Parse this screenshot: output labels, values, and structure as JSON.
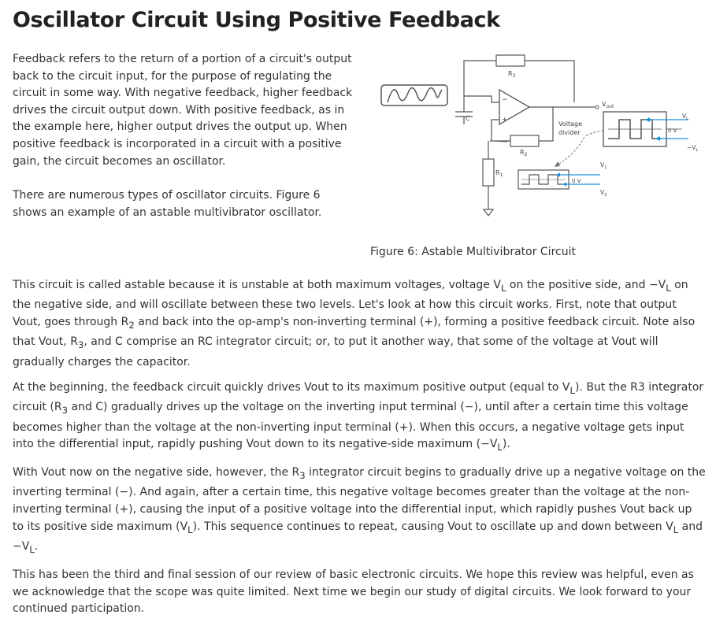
{
  "page": {
    "title": "Oscillator Circuit Using Positive Feedback"
  },
  "intro": {
    "paragraph1": "Feedback refers to the return of a portion of a circuit's output back to the circuit input, for the purpose of regulating the circuit in some way. With negative feedback, higher feedback drives the circuit output down. With positive feedback, as in the example here, higher output drives the output up. When positive feedback is incorporated in a circuit with a positive gain, the circuit becomes an oscillator.",
    "paragraph2": "There are numerous types of oscillator circuits. Figure 6 shows an example of an astable multivibrator oscillator."
  },
  "figure": {
    "caption": "Figure 6: Astable Multivibrator Circuit",
    "labels": {
      "r3": "R",
      "r3_sub": "3",
      "r2": "R",
      "r2_sub": "2",
      "r1": "R",
      "r1_sub": "1",
      "capacitor": "C",
      "minus": "−",
      "plus": "+",
      "vout": "V",
      "vout_sub": "out",
      "divider_line1": "Voltage",
      "divider_line2": "divider",
      "vl_top": "V",
      "vl_top_sub": "L",
      "zero_v_right": "0 V",
      "neg_vl": "−V",
      "neg_vl_sub": "L",
      "v1": "V",
      "v1_sub": "1",
      "zero_v_small": "0 V",
      "v2": "V",
      "v2_sub": "2"
    },
    "colors": {
      "line": "#555555",
      "accent_blue": "#1e90d6",
      "dashed": "#777777"
    }
  },
  "body": {
    "paragraph1": "This circuit is called astable because it is unstable at both maximum voltages, voltage V<sub>L</sub> on the positive side, and −V<sub>L</sub> on the negative side, and will oscillate between these two levels. Let's look at how this circuit works. First, note that output Vout, goes through R<sub>2</sub> and back into the op-amp's non-inverting terminal (+), forming a positive feedback circuit. Note also that Vout, R<sub>3</sub>, and C comprise an RC integrator circuit; or, to put it another way, that some of the voltage at Vout will gradually charges the capacitor.",
    "paragraph2": "At the beginning, the feedback circuit quickly drives Vout to its maximum positive output (equal to V<sub>L</sub>). But the R3 integrator circuit (R<sub>3</sub> and C) gradually drives up the voltage on the inverting input terminal (−), until after a certain time this voltage becomes higher than the voltage at the non-inverting input terminal (+). When this occurs, a negative voltage gets input into the differential input, rapidly pushing Vout down to its negative-side maximum (−V<sub>L</sub>).",
    "paragraph3": "With Vout now on the negative side, however, the R<sub>3</sub> integrator circuit begins to gradually drive up a negative voltage on the inverting terminal (−). And again, after a certain time, this negative voltage becomes greater than the voltage at the non-inverting terminal (+), causing the input of a positive voltage into the differential input, which rapidly pushes Vout back up to its positive side maximum (V<sub>L</sub>). This sequence continues to repeat, causing Vout to oscillate up and down between V<sub>L</sub> and −V<sub>L</sub>.",
    "paragraph4": "This has been the third and final session of our review of basic electronic circuits. We hope this review was helpful, even as we acknowledge that the scope was quite limited. Next time we begin our study of digital circuits. We look forward to your continued participation."
  }
}
